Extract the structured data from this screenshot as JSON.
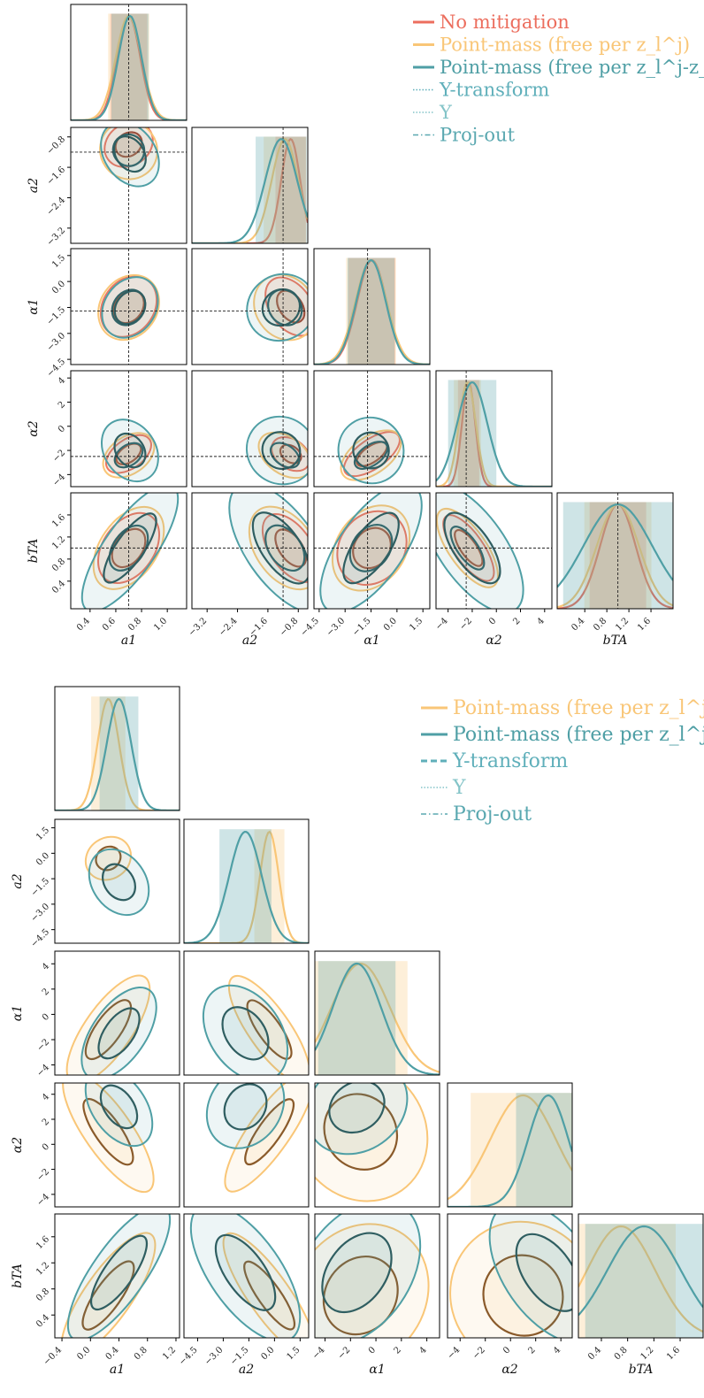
{
  "colors": {
    "no_mitigation": "#ec6e5e",
    "pm_zl": "#f9c677",
    "pm_zlzs": "#4f9fa5",
    "y_transform": "#5fafba",
    "upsilon": "#84c4c8",
    "proj_out": "#5aa8b0",
    "inner_red": "#9a3a2c",
    "inner_brown": "#8a5a2a",
    "inner_dark": "#2f5e61",
    "olive": "#b2b870"
  },
  "chart_data": [
    {
      "type": "corner",
      "params": [
        "a_1",
        "a_2",
        "α_1",
        "α_2",
        "b_TA"
      ],
      "axis_labels": [
        "a1",
        "a2",
        "α1",
        "α2",
        "bTA"
      ],
      "ranges": [
        [
          0.25,
          1.15
        ],
        [
          -3.6,
          -0.55
        ],
        [
          -4.8,
          1.9
        ],
        [
          -5.0,
          4.6
        ],
        [
          -0.1,
          2.0
        ]
      ],
      "truth": [
        0.7,
        -1.2,
        -1.7,
        -2.5,
        1.0
      ],
      "ticks": [
        [
          "0.4",
          "0.6",
          "0.8",
          "1.0"
        ],
        [
          "−3.2",
          "−2.4",
          "−1.6",
          "−0.8"
        ],
        [
          "−4.5",
          "−3.0",
          "−1.5",
          "0.0",
          "1.5"
        ],
        [
          "−4",
          "−2",
          "0",
          "2",
          "4"
        ],
        [
          "0.4",
          "0.8",
          "1.2",
          "1.6"
        ]
      ],
      "tick_values": [
        [
          0.4,
          0.6,
          0.8,
          1.0
        ],
        [
          -3.2,
          -2.4,
          -1.6,
          -0.8
        ],
        [
          -4.5,
          -3.0,
          -1.5,
          0.0,
          1.5
        ],
        [
          -4,
          -2,
          0,
          2,
          4
        ],
        [
          0.4,
          0.8,
          1.2,
          1.6
        ]
      ],
      "legend": [
        {
          "label": "No mitigation",
          "style": "solid",
          "color": "#ec6e5e"
        },
        {
          "label": "Point-mass (free per z_l^j)",
          "style": "solid",
          "color": "#f9c677"
        },
        {
          "label": "Point-mass (free per z_l^j-z_s^j)",
          "style": "solid",
          "color": "#4f9fa5"
        },
        {
          "label": "Y-transform",
          "style": "dotted",
          "color": "#5fafba"
        },
        {
          "label": "Υ",
          "style": "dotted",
          "color": "#84c4c8"
        },
        {
          "label": "Proj-out",
          "style": "dashdot",
          "color": "#5aa8b0"
        }
      ],
      "series": [
        {
          "name": "No mitigation",
          "color": "#ec6e5e",
          "mean": [
            0.7,
            -1.0,
            -1.45,
            -2.3,
            1.0
          ],
          "std": [
            0.09,
            0.25,
            0.85,
            0.55,
            0.32
          ]
        },
        {
          "name": "Point-mass (free per z_l^j)",
          "color": "#f9c677",
          "mean": [
            0.7,
            -1.15,
            -1.5,
            -2.4,
            1.0
          ],
          "std": [
            0.1,
            0.35,
            0.9,
            0.7,
            0.38
          ]
        },
        {
          "name": "Point-mass (free per z_l^j-z_s^j)",
          "color": "#4f9fa5",
          "mean": [
            0.71,
            -1.25,
            -1.5,
            -2.0,
            1.0
          ],
          "std": [
            0.09,
            0.42,
            0.85,
            1.25,
            0.62
          ]
        }
      ]
    },
    {
      "type": "corner",
      "params": [
        "a_1",
        "a_2",
        "α_1",
        "α_2",
        "b_TA"
      ],
      "axis_labels": [
        "a1",
        "a2",
        "α1",
        "α2",
        "bTA"
      ],
      "ranges": [
        [
          -0.5,
          1.25
        ],
        [
          -5.3,
          2.0
        ],
        [
          -4.8,
          5.0
        ],
        [
          -5.0,
          4.9
        ],
        [
          0.05,
          1.95
        ]
      ],
      "truth": null,
      "ticks": [
        [
          "−0.4",
          "0.0",
          "0.4",
          "0.8",
          "1.2"
        ],
        [
          "−4.5",
          "−3.0",
          "−1.5",
          "0.0",
          "1.5"
        ],
        [
          "−4",
          "−2",
          "0",
          "2",
          "4"
        ],
        [
          "−4",
          "−2",
          "0",
          "2",
          "4"
        ],
        [
          "0.4",
          "0.8",
          "1.2",
          "1.6"
        ]
      ],
      "tick_values": [
        [
          -0.4,
          0.0,
          0.4,
          0.8,
          1.2
        ],
        [
          -4.5,
          -3.0,
          -1.5,
          0.0,
          1.5
        ],
        [
          -4,
          -2,
          0,
          2,
          4
        ],
        [
          -4,
          -2,
          0,
          2,
          4
        ],
        [
          0.4,
          0.8,
          1.2,
          1.6
        ]
      ],
      "legend": [
        {
          "label": "Point-mass (free per z_l^j)",
          "style": "solid",
          "color": "#f9c677"
        },
        {
          "label": "Point-mass (free per z_l^j-z_s^j)",
          "style": "solid",
          "color": "#4f9fa5"
        },
        {
          "label": "Y-transform",
          "style": "dashed",
          "color": "#5fafba"
        },
        {
          "label": "Υ",
          "style": "dotted",
          "color": "#84c4c8"
        },
        {
          "label": "Proj-out",
          "style": "dashdot",
          "color": "#5aa8b0"
        }
      ],
      "series": [
        {
          "name": "Point-mass (free per z_l^j)",
          "color": "#f9c677",
          "mean": [
            0.25,
            -0.3,
            -1.2,
            1.0,
            0.7
          ],
          "std": [
            0.15,
            0.55,
            2.3,
            2.6,
            0.52
          ]
        },
        {
          "name": "Point-mass (free per z_l^j-z_s^j)",
          "color": "#4f9fa5",
          "mean": [
            0.4,
            -1.7,
            -1.5,
            3.0,
            1.05
          ],
          "std": [
            0.17,
            0.95,
            1.9,
            1.6,
            0.56
          ]
        }
      ]
    }
  ]
}
